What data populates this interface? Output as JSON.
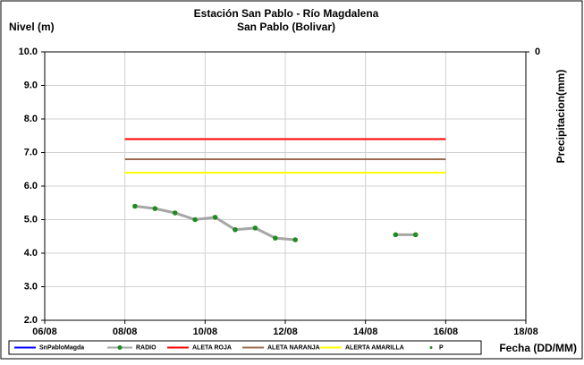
{
  "chart_data": {
    "type": "line",
    "title": "Estación San Pablo - Río Magdalena",
    "subtitle": "San Pablo (Bolivar)",
    "y_label": "Nivel (m)",
    "y2_label": "Precipitacion(mm)",
    "x_label": "Fecha (DD/MM)",
    "xlim": [
      6,
      18
    ],
    "xticks": [
      {
        "value": 6,
        "label": "06/08"
      },
      {
        "value": 8,
        "label": "08/08"
      },
      {
        "value": 10,
        "label": "10/08"
      },
      {
        "value": 12,
        "label": "12/08"
      },
      {
        "value": 14,
        "label": "14/08"
      },
      {
        "value": 16,
        "label": "16/08"
      },
      {
        "value": 18,
        "label": "18/08"
      }
    ],
    "ylim": [
      2,
      10
    ],
    "yticks": [
      {
        "value": 2,
        "label": "2.0"
      },
      {
        "value": 3,
        "label": "3.0"
      },
      {
        "value": 4,
        "label": "4.0"
      },
      {
        "value": 5,
        "label": "5.0"
      },
      {
        "value": 6,
        "label": "6.0"
      },
      {
        "value": 7,
        "label": "7.0"
      },
      {
        "value": 8,
        "label": "8.0"
      },
      {
        "value": 9,
        "label": "9.0"
      },
      {
        "value": 10,
        "label": "10.0"
      }
    ],
    "y2ticks": [
      0
    ],
    "grid": true,
    "series": [
      {
        "name": "SnPabloMagda",
        "color": "#0000ff",
        "x": [],
        "values": []
      },
      {
        "name": "RADIO",
        "color": "#a6a6a6",
        "marker_color": "#1e8c1e",
        "x": [
          8.25,
          8.75,
          9.25,
          9.75,
          10.25,
          10.75,
          11.25,
          11.75,
          12.25,
          12.75,
          13.25,
          13.75,
          14.25,
          14.75,
          15.25
        ],
        "values": [
          5.4,
          5.33,
          5.2,
          5.0,
          5.07,
          4.7,
          4.75,
          4.45,
          4.4,
          null,
          null,
          null,
          null,
          4.55,
          4.55
        ]
      },
      {
        "name": "ALETA ROJA",
        "color": "#ff0000",
        "x": [
          8,
          16
        ],
        "values": [
          7.4,
          7.4
        ]
      },
      {
        "name": "ALETA NARANJA",
        "color": "#9c6b4e",
        "x": [
          8,
          16
        ],
        "values": [
          6.8,
          6.8
        ]
      },
      {
        "name": "ALERTA AMARILLA",
        "color": "#ffff00",
        "x": [
          8,
          16
        ],
        "values": [
          6.4,
          6.4
        ]
      },
      {
        "name": "P",
        "color": "#1e8c1e",
        "x": [],
        "values": []
      }
    ]
  }
}
